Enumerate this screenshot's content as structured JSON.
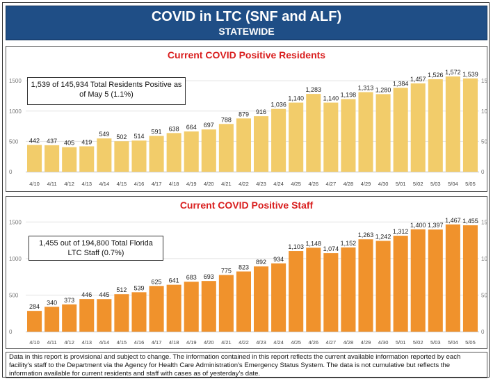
{
  "header": {
    "title": "COVID in LTC (SNF and ALF)",
    "subtitle": "STATEWIDE"
  },
  "residents": {
    "title": "Current COVID Positive Residents",
    "callout": "1,539 of 145,934 Total Residents Positive as of May 5 (1.1%)"
  },
  "staff": {
    "title": "Current COVID Positive Staff",
    "callout": "1,455 out of 194,800 Total Florida LTC Staff (0.7%)"
  },
  "footer": {
    "note": "Data in this report is provisional and subject to change.  The information contained in this report reflects the current available information reported by each facility's staff to the Department via the Agency for Health Care Administration's Emergency Status System.  The data is not cumulative but reflects the information available for current residents and staff with cases as of yesterday's date."
  },
  "chart_data": [
    {
      "type": "bar",
      "title": "Current COVID Positive Residents",
      "categories": [
        "4/10",
        "4/11",
        "4/12",
        "4/13",
        "4/14",
        "4/15",
        "4/16",
        "4/17",
        "4/18",
        "4/19",
        "4/20",
        "4/21",
        "4/22",
        "4/23",
        "4/24",
        "4/25",
        "4/26",
        "4/27",
        "4/28",
        "4/29",
        "4/30",
        "5/01",
        "5/02",
        "5/03",
        "5/04",
        "5/05"
      ],
      "values": [
        442,
        437,
        405,
        419,
        549,
        502,
        514,
        591,
        638,
        664,
        697,
        788,
        879,
        916,
        1036,
        1140,
        1283,
        1140,
        1198,
        1313,
        1280,
        1384,
        1457,
        1526,
        1572,
        1539
      ],
      "value_labels": [
        "442",
        "437",
        "405",
        "419",
        "549",
        "502",
        "514",
        "591",
        "638",
        "664",
        "697",
        "788",
        "879",
        "916",
        "1,036",
        "1,140",
        "1,283",
        "1,140",
        "1,198",
        "1,313",
        "1,280",
        "1,384",
        "1,457",
        "1,526",
        "1,572",
        "1,539"
      ],
      "yticks": [
        "0",
        "500",
        "1000",
        "1500"
      ],
      "ytick_values": [
        0,
        500,
        1000,
        1500
      ],
      "ylim": [
        0,
        1720
      ],
      "color": "#f2cc6a",
      "grid": true,
      "xlabel": "",
      "ylabel": ""
    },
    {
      "type": "bar",
      "title": "Current COVID Positive Staff",
      "categories": [
        "4/10",
        "4/11",
        "4/12",
        "4/13",
        "4/14",
        "4/15",
        "4/16",
        "4/17",
        "4/18",
        "4/19",
        "4/20",
        "4/21",
        "4/22",
        "4/23",
        "4/24",
        "4/25",
        "4/26",
        "4/27",
        "4/28",
        "4/29",
        "4/30",
        "5/01",
        "5/02",
        "5/03",
        "5/04",
        "5/05"
      ],
      "values": [
        284,
        340,
        373,
        446,
        445,
        512,
        539,
        625,
        641,
        683,
        693,
        775,
        823,
        892,
        934,
        1103,
        1148,
        1074,
        1152,
        1263,
        1242,
        1312,
        1400,
        1397,
        1467,
        1455
      ],
      "value_labels": [
        "284",
        "340",
        "373",
        "446",
        "445",
        "512",
        "539",
        "625",
        "641",
        "683",
        "693",
        "775",
        "823",
        "892",
        "934",
        "1,103",
        "1,148",
        "1,074",
        "1,152",
        "1,263",
        "1,242",
        "1,312",
        "1,400",
        "1,397",
        "1,467",
        "1,455"
      ],
      "yticks": [
        "0",
        "500",
        "1000",
        "1500"
      ],
      "ytick_values": [
        0,
        500,
        1000,
        1500
      ],
      "ylim": [
        0,
        1560
      ],
      "color": "#f0922c",
      "grid": true,
      "xlabel": "",
      "ylabel": ""
    }
  ]
}
